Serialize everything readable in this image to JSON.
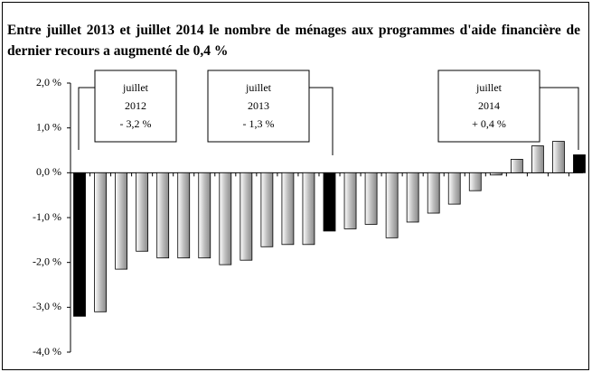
{
  "chart_data": {
    "type": "bar",
    "title": "Entre juillet 2013 et juillet 2014 le nombre de ménages aux programmes d'aide financière de dernier recours a augmenté de 0,4 %",
    "categories": [
      null,
      null,
      null,
      null,
      null,
      null,
      null,
      null,
      null,
      null,
      null,
      null,
      null,
      null,
      null,
      null,
      null,
      null,
      null,
      null,
      null,
      null,
      null,
      null,
      null
    ],
    "values": [
      -3.2,
      -3.1,
      -2.15,
      -1.75,
      -1.9,
      -1.9,
      -1.9,
      -2.05,
      -1.95,
      -1.65,
      -1.6,
      -1.6,
      -1.3,
      -1.25,
      -1.15,
      -1.45,
      -1.1,
      -0.9,
      -0.7,
      -0.4,
      -0.05,
      0.3,
      0.6,
      0.7,
      0.4
    ],
    "colors": [
      "#000000",
      "#c8c8c8",
      "#c8c8c8",
      "#c8c8c8",
      "#c8c8c8",
      "#c8c8c8",
      "#c8c8c8",
      "#c8c8c8",
      "#c8c8c8",
      "#c8c8c8",
      "#c8c8c8",
      "#c8c8c8",
      "#000000",
      "#c8c8c8",
      "#c8c8c8",
      "#c8c8c8",
      "#c8c8c8",
      "#c8c8c8",
      "#c8c8c8",
      "#c8c8c8",
      "#c8c8c8",
      "#c8c8c8",
      "#c8c8c8",
      "#c8c8c8",
      "#000000"
    ],
    "ylim": [
      -4,
      2
    ],
    "yticks": [
      {
        "value": 2,
        "label": "2,0 %"
      },
      {
        "value": 1,
        "label": "1,0 %"
      },
      {
        "value": 0,
        "label": "0,0 %"
      },
      {
        "value": -1,
        "label": "-1,0 %"
      },
      {
        "value": -2,
        "label": "-2,0 %"
      },
      {
        "value": -3,
        "label": "-3,0 %"
      },
      {
        "value": -4,
        "label": "-4,0 %"
      }
    ],
    "annotations": [
      {
        "lines": [
          "juillet",
          "2012",
          "- 3,2 %"
        ]
      },
      {
        "lines": [
          "juillet",
          "2013",
          "- 1,3 %"
        ]
      },
      {
        "lines": [
          "juillet",
          "2014",
          "+ 0,4 %"
        ]
      }
    ]
  }
}
